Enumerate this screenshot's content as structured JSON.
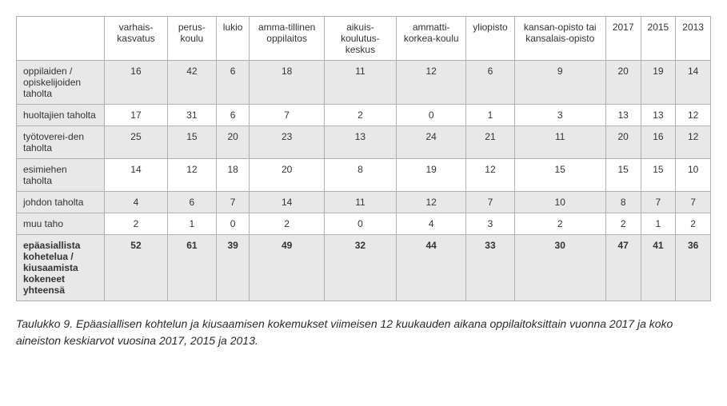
{
  "table": {
    "columns": [
      "varhais-kasvatus",
      "perus-koulu",
      "lukio",
      "amma-tillinen oppilaitos",
      "aikuis-koulutus-keskus",
      "ammatti-korkea-koulu",
      "yliopisto",
      "kansan-opisto tai kansalais-opisto",
      "2017",
      "2015",
      "2013"
    ],
    "rows": [
      {
        "label": "oppilaiden / opiskelijoiden taholta",
        "values": [
          16,
          42,
          6,
          18,
          11,
          12,
          6,
          9,
          20,
          19,
          14
        ]
      },
      {
        "label": "huoltajien taholta",
        "values": [
          17,
          31,
          6,
          7,
          2,
          0,
          1,
          3,
          13,
          13,
          12
        ]
      },
      {
        "label": "työtoverei-den taholta",
        "values": [
          25,
          15,
          20,
          23,
          13,
          24,
          21,
          11,
          20,
          16,
          12
        ]
      },
      {
        "label": "esimiehen taholta",
        "values": [
          14,
          12,
          18,
          20,
          8,
          19,
          12,
          15,
          15,
          15,
          10
        ]
      },
      {
        "label": "johdon taholta",
        "values": [
          4,
          6,
          7,
          14,
          11,
          12,
          7,
          10,
          8,
          7,
          7
        ]
      },
      {
        "label": "muu taho",
        "values": [
          2,
          1,
          0,
          2,
          0,
          4,
          3,
          2,
          2,
          1,
          2
        ]
      }
    ],
    "total": {
      "label": "epäasiallista kohetelua / kiusaamista kokeneet yhteensä",
      "values": [
        52,
        61,
        39,
        49,
        32,
        44,
        33,
        30,
        47,
        41,
        36
      ]
    }
  },
  "caption": "Taulukko 9. Epäasiallisen kohtelun ja kiusaamisen kokemukset viimeisen 12 kuukauden aikana oppilaitoksittain vuonna 2017 ja koko aineiston keskiarvot vuosina 2017, 2015 ja 2013."
}
